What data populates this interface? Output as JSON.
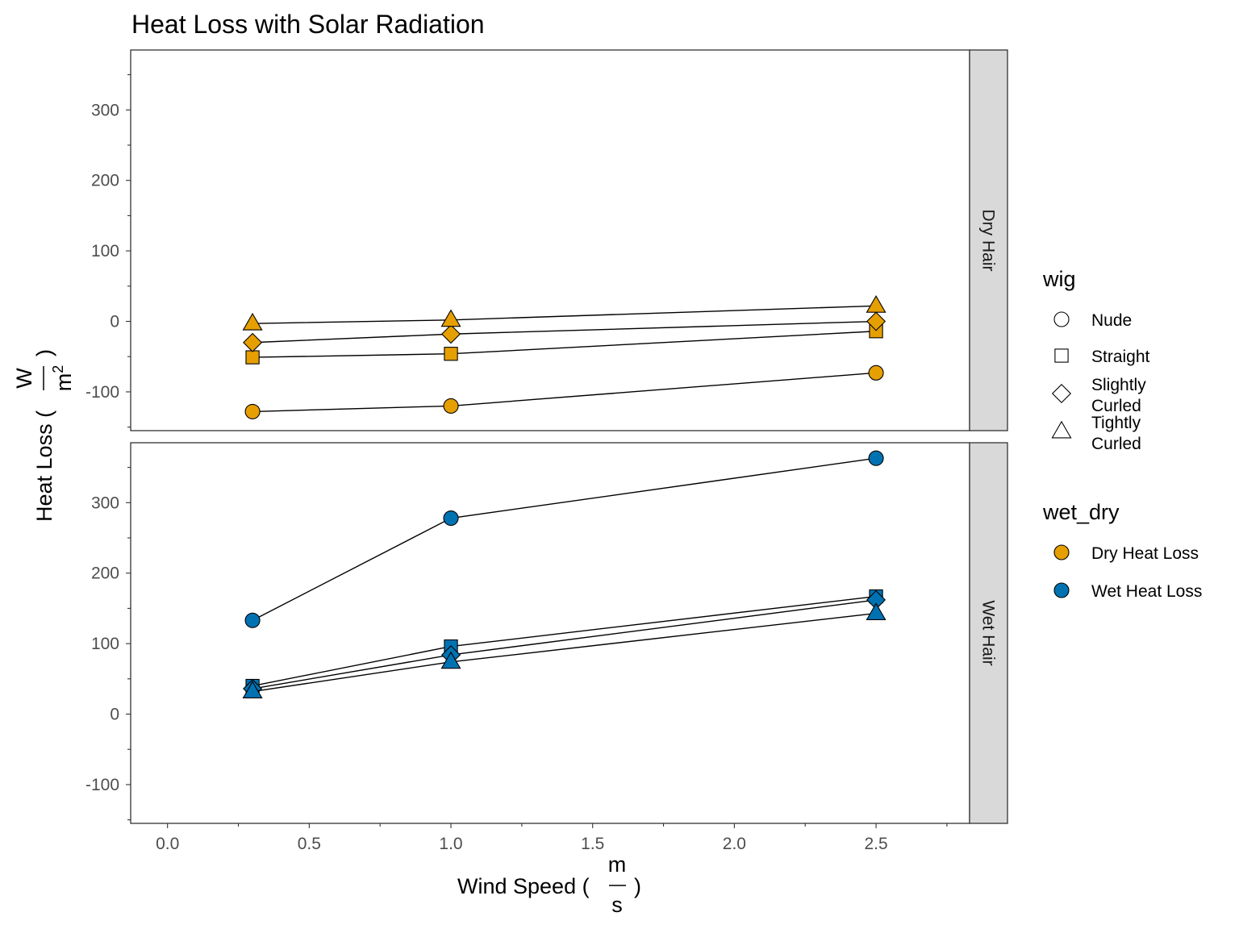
{
  "chart_data": {
    "type": "line",
    "title": "Heat Loss with Solar Radiation",
    "xlabel": "Wind Speed",
    "xlabel_unit": {
      "numerator": "m",
      "denominator": "s"
    },
    "ylabel": "Heat Loss",
    "ylabel_unit": {
      "numerator": "W",
      "denominator": "m",
      "denominator_exponent": "2"
    },
    "xlim": [
      -0.13,
      2.83
    ],
    "ylim": [
      -155,
      385
    ],
    "x_ticks": [
      0.0,
      0.5,
      1.0,
      1.5,
      2.0,
      2.5
    ],
    "x_tick_labels": [
      "0.0",
      "0.5",
      "1.0",
      "1.5",
      "2.0",
      "2.5"
    ],
    "y_ticks": [
      -100,
      0,
      100,
      200,
      300
    ],
    "y_tick_labels": [
      "-100",
      "0",
      "100",
      "200",
      "300"
    ],
    "grid": false,
    "facets": [
      {
        "label": "Dry Hair",
        "series": [
          {
            "wig": "Nude",
            "wet_dry": "Dry Heat Loss",
            "x": [
              0.3,
              1.0,
              2.5
            ],
            "y": [
              -128,
              -120,
              -73
            ]
          },
          {
            "wig": "Straight",
            "wet_dry": "Dry Heat Loss",
            "x": [
              0.3,
              1.0,
              2.5
            ],
            "y": [
              -51,
              -46,
              -14
            ]
          },
          {
            "wig": "Slightly Curled",
            "wet_dry": "Dry Heat Loss",
            "x": [
              0.3,
              1.0,
              2.5
            ],
            "y": [
              -30,
              -18,
              0
            ]
          },
          {
            "wig": "Tightly Curled",
            "wet_dry": "Dry Heat Loss",
            "x": [
              0.3,
              1.0,
              2.5
            ],
            "y": [
              -3,
              2,
              22
            ]
          }
        ]
      },
      {
        "label": "Wet Hair",
        "series": [
          {
            "wig": "Nude",
            "wet_dry": "Wet Heat Loss",
            "x": [
              0.3,
              1.0,
              2.5
            ],
            "y": [
              133,
              278,
              363
            ]
          },
          {
            "wig": "Straight",
            "wet_dry": "Wet Heat Loss",
            "x": [
              0.3,
              1.0,
              2.5
            ],
            "y": [
              40,
              96,
              167
            ]
          },
          {
            "wig": "Slightly Curled",
            "wet_dry": "Wet Heat Loss",
            "x": [
              0.3,
              1.0,
              2.5
            ],
            "y": [
              36,
              84,
              162
            ]
          },
          {
            "wig": "Tightly Curled",
            "wet_dry": "Wet Heat Loss",
            "x": [
              0.3,
              1.0,
              2.5
            ],
            "y": [
              32,
              74,
              143
            ]
          }
        ]
      }
    ],
    "legends": [
      {
        "title": "wig",
        "items": [
          {
            "label": [
              "Nude"
            ],
            "shape": "circle"
          },
          {
            "label": [
              "Straight"
            ],
            "shape": "square"
          },
          {
            "label": [
              "Slightly",
              "Curled"
            ],
            "shape": "diamond"
          },
          {
            "label": [
              "Tightly",
              "Curled"
            ],
            "shape": "triangle"
          }
        ]
      },
      {
        "title": "wet_dry",
        "items": [
          {
            "label": [
              "Dry Heat Loss"
            ],
            "color": "#E69F00"
          },
          {
            "label": [
              "Wet Heat Loss"
            ],
            "color": "#0072B2"
          }
        ]
      }
    ],
    "colors": {
      "Dry Heat Loss": "#E69F00",
      "Wet Heat Loss": "#0072B2",
      "strip": "#d9d9d9"
    }
  }
}
